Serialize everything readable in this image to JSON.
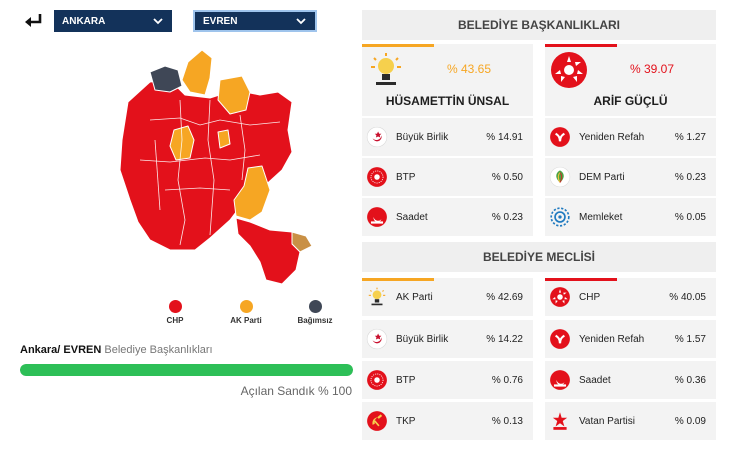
{
  "header": {
    "city": "ANKARA",
    "district": "EVREN"
  },
  "colors": {
    "chp": "#e3111b",
    "akp": "#f6a623",
    "independent": "#3f4756",
    "navy": "#13325a",
    "progress": "#2dbf57"
  },
  "legend": [
    {
      "label": "CHP",
      "color": "#e3111b"
    },
    {
      "label": "AK Parti",
      "color": "#f6a623"
    },
    {
      "label": "Bağımsız",
      "color": "#3f4756"
    }
  ],
  "breadcrumb": {
    "location": "Ankara/ EVREN",
    "subtitle": "Belediye Başkanlıkları"
  },
  "progress": {
    "value": 100,
    "label": "Açılan Sandık % 100"
  },
  "mayor": {
    "title": "BELEDİYE BAŞKANLIKLARI",
    "candidates": [
      {
        "name": "HÜSAMETTİN ÜNSAL",
        "pct": "% 43.65",
        "party": "akp-icon",
        "color": "#f6a623"
      },
      {
        "name": "ARİF GÜÇLÜ",
        "pct": "% 39.07",
        "party": "chp-icon",
        "color": "#e3111b"
      }
    ],
    "parties": [
      {
        "name": "Büyük Birlik",
        "pct": "% 14.91",
        "icon": "bbp-icon"
      },
      {
        "name": "Yeniden Refah",
        "pct": "% 1.27",
        "icon": "yrp-icon"
      },
      {
        "name": "BTP",
        "pct": "% 0.50",
        "icon": "btp-icon"
      },
      {
        "name": "DEM Parti",
        "pct": "% 0.23",
        "icon": "dem-icon"
      },
      {
        "name": "Saadet",
        "pct": "% 0.23",
        "icon": "saadet-icon"
      },
      {
        "name": "Memleket",
        "pct": "% 0.05",
        "icon": "memleket-icon"
      }
    ]
  },
  "council": {
    "title": "BELEDİYE MECLİSİ",
    "parties": [
      {
        "name": "AK Parti",
        "pct": "% 42.69",
        "icon": "akp-icon"
      },
      {
        "name": "CHP",
        "pct": "% 40.05",
        "icon": "chp-icon"
      },
      {
        "name": "Büyük Birlik",
        "pct": "% 14.22",
        "icon": "bbp-icon"
      },
      {
        "name": "Yeniden Refah",
        "pct": "% 1.57",
        "icon": "yrp-icon"
      },
      {
        "name": "BTP",
        "pct": "% 0.76",
        "icon": "btp-icon"
      },
      {
        "name": "Saadet",
        "pct": "% 0.36",
        "icon": "saadet-icon"
      },
      {
        "name": "TKP",
        "pct": "% 0.13",
        "icon": "tkp-icon"
      },
      {
        "name": "Vatan Partisi",
        "pct": "% 0.09",
        "icon": "vatan-icon"
      }
    ]
  }
}
